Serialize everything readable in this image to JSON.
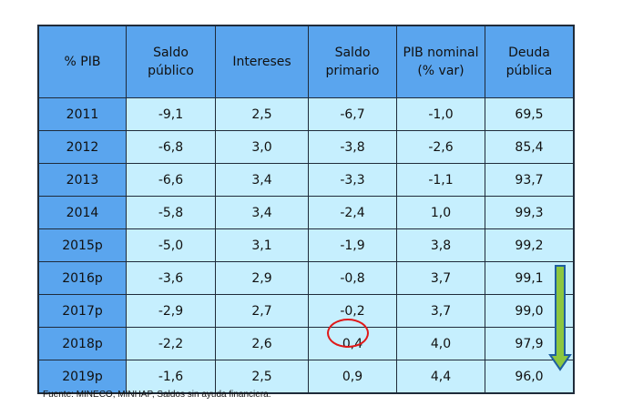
{
  "table": {
    "headers": [
      "% PIB",
      "Saldo\npúblico",
      "Intereses",
      "Saldo\nprimario",
      "PIB nominal\n(% var)",
      "Deuda\npública"
    ],
    "rows": [
      [
        "2011",
        "-9,1",
        "2,5",
        "-6,7",
        "-1,0",
        "69,5"
      ],
      [
        "2012",
        "-6,8",
        "3,0",
        "-3,8",
        "-2,6",
        "85,4"
      ],
      [
        "2013",
        "-6,6",
        "3,4",
        "-3,3",
        "-1,1",
        "93,7"
      ],
      [
        "2014",
        "-5,8",
        "3,4",
        "-2,4",
        "1,0",
        "99,3"
      ],
      [
        "2015p",
        "-5,0",
        "3,1",
        "-1,9",
        "3,8",
        "99,2"
      ],
      [
        "2016p",
        "-3,6",
        "2,9",
        "-0,8",
        "3,7",
        "99,1"
      ],
      [
        "2017p",
        "-2,9",
        "2,7",
        "-0,2",
        "3,7",
        "99,0"
      ],
      [
        "2018p",
        "-2,2",
        "2,6",
        "0,4",
        "4,0",
        "97,9"
      ],
      [
        "2019p",
        "-1,6",
        "2,5",
        "0,9",
        "4,4",
        "96,0"
      ]
    ]
  },
  "annotations": {
    "highlight": "Saldo primario 2018p",
    "circle_color": "#e01818",
    "arrow_icon": "down-arrow",
    "arrow_fill": "#8cc63f",
    "arrow_outline": "#1f5fa0"
  },
  "colors": {
    "header": "#5aa5ee",
    "cell": "#c6effe"
  },
  "footnote": "Fuente: MINECO, MINHAP, Saldos sin ayuda financiera."
}
